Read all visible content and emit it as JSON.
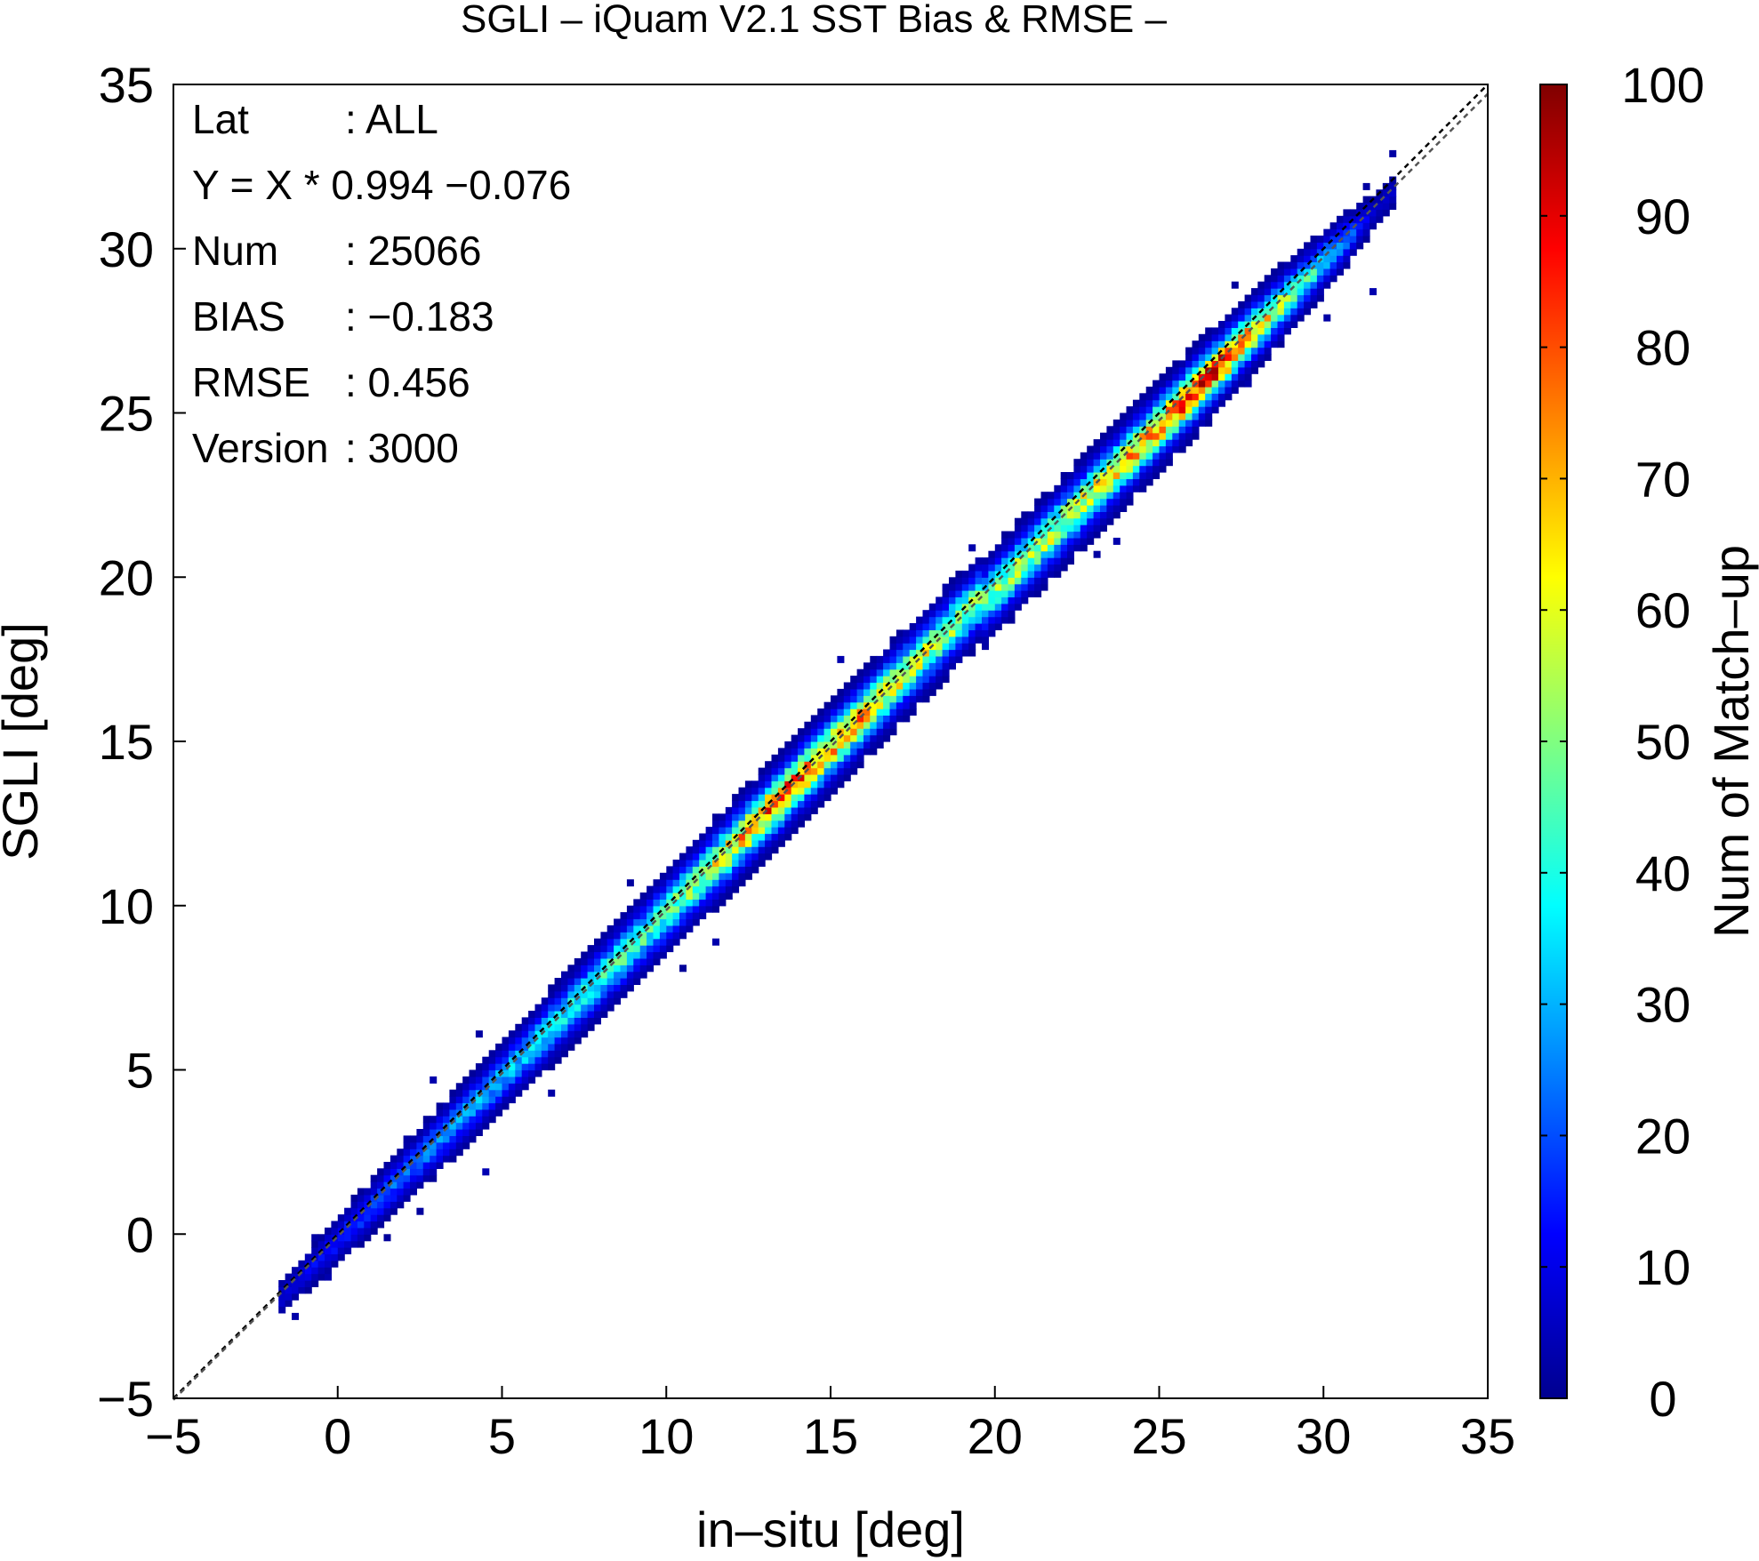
{
  "chart_data": {
    "type": "heatmap",
    "title": "SGLI – iQuam V2.1 SST Bias & RMSE  –",
    "xlabel": "in–situ [deg]",
    "ylabel": "SGLI [deg]",
    "xlim": [
      -5,
      35
    ],
    "ylim": [
      -5,
      35
    ],
    "xticks": [
      "−5",
      "0",
      "5",
      "10",
      "15",
      "20",
      "25",
      "30",
      "35"
    ],
    "yticks": [
      "−5",
      "0",
      "5",
      "10",
      "15",
      "20",
      "25",
      "30",
      "35"
    ],
    "xtick_values": [
      -5,
      0,
      5,
      10,
      15,
      20,
      25,
      30,
      35
    ],
    "ytick_values": [
      -5,
      0,
      5,
      10,
      15,
      20,
      25,
      30,
      35
    ],
    "grid": false,
    "bin_size": 0.2,
    "regression": {
      "slope": 0.994,
      "intercept": -0.076
    },
    "reference_line": "y = x",
    "colorbar": {
      "label": "Num of Match–up",
      "range": [
        0,
        100
      ],
      "ticks": [
        "0",
        "10",
        "20",
        "30",
        "40",
        "50",
        "60",
        "70",
        "80",
        "90",
        "100"
      ],
      "tick_values": [
        0,
        10,
        20,
        30,
        40,
        50,
        60,
        70,
        80,
        90,
        100
      ],
      "colors": [
        "#00008f",
        "#0000ff",
        "#0080ff",
        "#00ffff",
        "#80ff80",
        "#ffff00",
        "#ff8000",
        "#ff0000",
        "#800000"
      ]
    },
    "stats": [
      {
        "key": "Lat",
        "sep": ":",
        "value": "ALL"
      },
      {
        "key": "Y = X * 0.994 −0.076",
        "sep": "",
        "value": ""
      },
      {
        "key": "Num",
        "sep": ":",
        "value": "25066"
      },
      {
        "key": "BIAS",
        "sep": ":",
        "value": "−0.183"
      },
      {
        "key": "RMSE",
        "sep": ":",
        "value": "0.456"
      },
      {
        "key": "Version",
        "sep": ":",
        "value": "3000"
      }
    ],
    "density_profile": [
      {
        "x": -1.5,
        "core": 8,
        "spread": 0.35
      },
      {
        "x": 0,
        "core": 15,
        "spread": 0.45
      },
      {
        "x": 2.5,
        "core": 25,
        "spread": 0.55
      },
      {
        "x": 5,
        "core": 30,
        "spread": 0.6
      },
      {
        "x": 7.5,
        "core": 42,
        "spread": 0.65
      },
      {
        "x": 10,
        "core": 45,
        "spread": 0.7
      },
      {
        "x": 13.5,
        "core": 80,
        "spread": 0.7
      },
      {
        "x": 15.5,
        "core": 70,
        "spread": 0.7
      },
      {
        "x": 18,
        "core": 55,
        "spread": 0.7
      },
      {
        "x": 20,
        "core": 50,
        "spread": 0.7
      },
      {
        "x": 22.5,
        "core": 60,
        "spread": 0.7
      },
      {
        "x": 24.5,
        "core": 70,
        "spread": 0.7
      },
      {
        "x": 26.5,
        "core": 92,
        "spread": 0.65
      },
      {
        "x": 28.5,
        "core": 55,
        "spread": 0.6
      },
      {
        "x": 30.5,
        "core": 25,
        "spread": 0.5
      },
      {
        "x": 31.5,
        "core": 6,
        "spread": 0.35
      }
    ]
  }
}
